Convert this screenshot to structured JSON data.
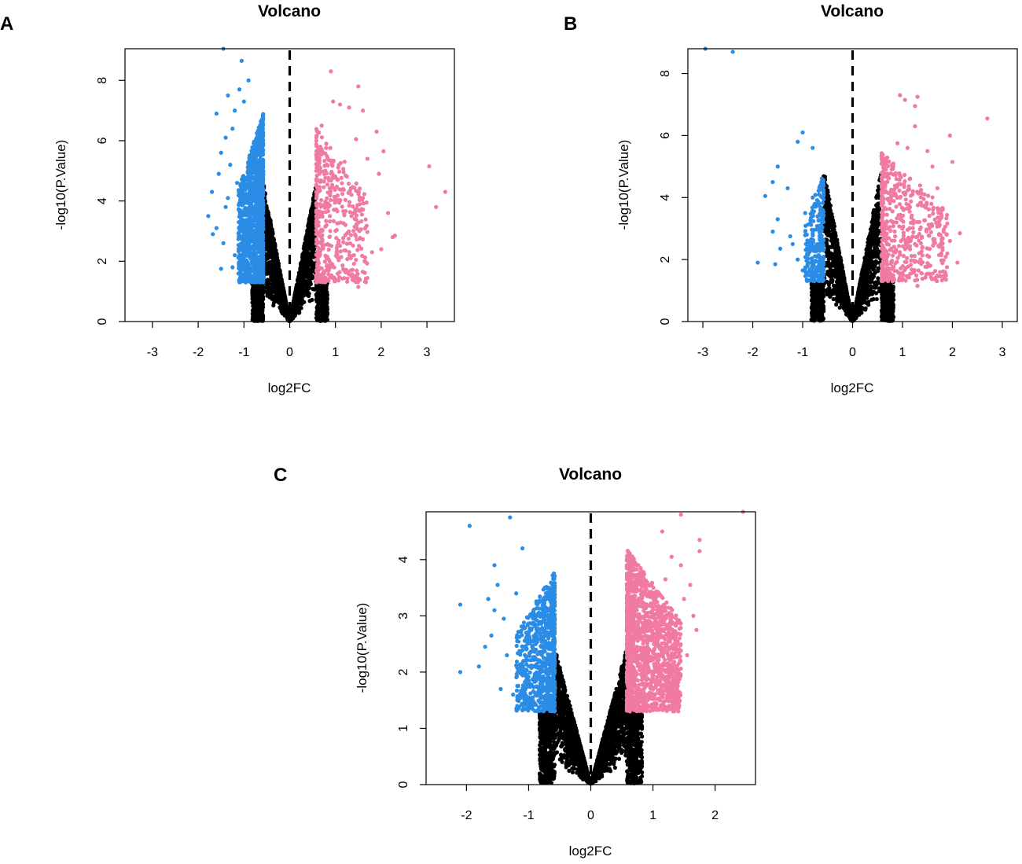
{
  "colors": {
    "down": "#2b8ce6",
    "up": "#f07aa0",
    "ns": "#000000"
  },
  "chart_data": [
    {
      "panel": "A",
      "type": "scatter",
      "title": "Volcano",
      "xlabel": "log2FC",
      "ylabel": "-log10(P.Value)",
      "xlim": [
        -3.6,
        3.6
      ],
      "ylim": [
        0,
        9.05
      ],
      "xticks": [
        -3,
        -2,
        -1,
        0,
        1,
        2,
        3
      ],
      "yticks": [
        0,
        2,
        4,
        6,
        8
      ],
      "fc_cut": 0.58,
      "p_cut": 1.3,
      "ns_slope": 8.0,
      "down_points": [
        [
          -1.45,
          9.1
        ],
        [
          -1.05,
          8.65
        ],
        [
          -1.35,
          7.5
        ],
        [
          -1.6,
          6.9
        ],
        [
          -1.2,
          7.0
        ],
        [
          -1.1,
          7.7
        ],
        [
          -1.4,
          6.1
        ],
        [
          -1.25,
          6.4
        ],
        [
          -1.5,
          5.6
        ],
        [
          -1.3,
          5.2
        ],
        [
          -1.55,
          4.9
        ],
        [
          -1.7,
          4.3
        ],
        [
          -1.78,
          3.5
        ],
        [
          -1.68,
          2.9
        ],
        [
          -1.45,
          2.6
        ],
        [
          -1.2,
          2.2
        ],
        [
          -1.5,
          1.75
        ],
        [
          -1.25,
          1.8
        ],
        [
          -1.6,
          3.1
        ],
        [
          -1.4,
          3.8
        ],
        [
          -1.15,
          4.6
        ],
        [
          -0.9,
          8.0
        ],
        [
          -1.0,
          7.3
        ],
        [
          -1.35,
          4.1
        ],
        [
          -1.1,
          1.6
        ]
      ],
      "down_cloud": {
        "x_min": -1.12,
        "x_max": -0.58,
        "y_min": 1.3,
        "y_max": 6.9,
        "count": 1300,
        "seed": 11
      },
      "up_points": [
        [
          0.9,
          8.3
        ],
        [
          1.5,
          7.8
        ],
        [
          0.95,
          7.3
        ],
        [
          1.3,
          7.1
        ],
        [
          1.1,
          7.2
        ],
        [
          1.6,
          7.0
        ],
        [
          0.7,
          6.5
        ],
        [
          1.9,
          6.3
        ],
        [
          1.45,
          6.05
        ],
        [
          0.8,
          5.9
        ],
        [
          2.05,
          5.65
        ],
        [
          3.05,
          5.15
        ],
        [
          3.4,
          4.3
        ],
        [
          3.2,
          3.8
        ],
        [
          2.3,
          2.85
        ],
        [
          2.25,
          2.8
        ],
        [
          2.15,
          3.6
        ],
        [
          1.8,
          2.3
        ],
        [
          1.6,
          4.1
        ],
        [
          1.2,
          5.3
        ],
        [
          1.7,
          5.4
        ],
        [
          1.0,
          1.4
        ],
        [
          0.75,
          1.6
        ],
        [
          1.5,
          1.15
        ],
        [
          1.95,
          4.9
        ],
        [
          2.0,
          2.4
        ],
        [
          1.35,
          3.5
        ],
        [
          1.05,
          4.7
        ]
      ],
      "up_cloud": {
        "x_min": 0.58,
        "x_max": 1.7,
        "y_min": 1.3,
        "y_max": 6.4,
        "count": 460,
        "seed": 23
      },
      "ns_count": 2600,
      "ns_seed": 37
    },
    {
      "panel": "B",
      "type": "scatter",
      "title": "Volcano",
      "xlabel": "log2FC",
      "ylabel": "-log10(P.Value)",
      "xlim": [
        -3.3,
        3.3
      ],
      "ylim": [
        0,
        8.8
      ],
      "xticks": [
        -3,
        -2,
        -1,
        0,
        1,
        2,
        3
      ],
      "yticks": [
        0,
        2,
        4,
        6,
        8
      ],
      "fc_cut": 0.58,
      "p_cut": 1.3,
      "ns_slope": 8.5,
      "down_points": [
        [
          -2.95,
          8.85
        ],
        [
          -2.4,
          8.7
        ],
        [
          -1.0,
          6.1
        ],
        [
          -1.1,
          5.8
        ],
        [
          -0.8,
          5.6
        ],
        [
          -1.5,
          5.0
        ],
        [
          -1.6,
          4.5
        ],
        [
          -1.75,
          4.05
        ],
        [
          -1.3,
          4.3
        ],
        [
          -1.5,
          3.3
        ],
        [
          -1.6,
          2.9
        ],
        [
          -1.2,
          2.5
        ],
        [
          -1.9,
          1.9
        ],
        [
          -1.55,
          1.85
        ],
        [
          -1.1,
          2.0
        ],
        [
          -0.95,
          3.5
        ],
        [
          -1.25,
          2.75
        ],
        [
          -0.8,
          4.0
        ],
        [
          -1.45,
          2.35
        ],
        [
          -1.0,
          1.65
        ]
      ],
      "down_cloud": {
        "x_min": -0.95,
        "x_max": -0.58,
        "y_min": 1.3,
        "y_max": 4.8,
        "count": 260,
        "seed": 51
      },
      "up_points": [
        [
          2.7,
          6.55
        ],
        [
          0.95,
          7.3
        ],
        [
          1.05,
          7.15
        ],
        [
          1.3,
          7.25
        ],
        [
          1.25,
          6.95
        ],
        [
          1.95,
          6.0
        ],
        [
          1.25,
          6.3
        ],
        [
          0.9,
          5.75
        ],
        [
          1.1,
          5.6
        ],
        [
          1.5,
          5.5
        ],
        [
          1.6,
          5.0
        ],
        [
          2.0,
          5.15
        ],
        [
          2.15,
          2.85
        ],
        [
          2.1,
          1.9
        ],
        [
          1.95,
          2.6
        ],
        [
          1.7,
          4.3
        ],
        [
          1.8,
          3.6
        ],
        [
          1.3,
          1.15
        ],
        [
          0.8,
          1.3
        ],
        [
          1.55,
          3.1
        ],
        [
          1.4,
          2.4
        ]
      ],
      "up_cloud": {
        "x_min": 0.58,
        "x_max": 1.9,
        "y_min": 1.3,
        "y_max": 5.5,
        "count": 560,
        "seed": 67
      },
      "ns_count": 2200,
      "ns_seed": 79
    },
    {
      "panel": "C",
      "type": "scatter",
      "title": "Volcano",
      "xlabel": "log2FC",
      "ylabel": "-log10(P.Value)",
      "xlim": [
        -2.65,
        2.65
      ],
      "ylim": [
        0,
        4.85
      ],
      "xticks": [
        -2,
        -1,
        0,
        1,
        2
      ],
      "yticks": [
        0,
        1,
        2,
        3,
        4
      ],
      "fc_cut": 0.58,
      "p_cut": 1.3,
      "ns_slope": 4.2,
      "down_points": [
        [
          -1.95,
          4.6
        ],
        [
          -1.3,
          4.75
        ],
        [
          -1.1,
          4.2
        ],
        [
          -1.55,
          3.9
        ],
        [
          -1.5,
          3.55
        ],
        [
          -2.1,
          3.2
        ],
        [
          -1.6,
          2.65
        ],
        [
          -1.8,
          2.1
        ],
        [
          -2.1,
          2.0
        ],
        [
          -1.4,
          2.95
        ],
        [
          -1.65,
          3.3
        ],
        [
          -1.35,
          2.3
        ],
        [
          -1.2,
          3.4
        ],
        [
          -1.45,
          1.7
        ],
        [
          -1.25,
          1.6
        ],
        [
          -1.7,
          2.45
        ],
        [
          -1.55,
          3.1
        ]
      ],
      "down_cloud": {
        "x_min": -1.2,
        "x_max": -0.58,
        "y_min": 1.3,
        "y_max": 3.8,
        "count": 820,
        "seed": 83
      },
      "up_points": [
        [
          2.45,
          4.85
        ],
        [
          1.45,
          4.8
        ],
        [
          1.75,
          4.35
        ],
        [
          1.75,
          4.15
        ],
        [
          1.15,
          4.5
        ],
        [
          1.3,
          4.05
        ],
        [
          1.45,
          3.9
        ],
        [
          1.6,
          3.55
        ],
        [
          1.65,
          3.0
        ],
        [
          1.7,
          2.75
        ],
        [
          1.55,
          2.3
        ],
        [
          1.4,
          1.95
        ],
        [
          1.2,
          3.65
        ],
        [
          1.5,
          3.3
        ]
      ],
      "up_cloud": {
        "x_min": 0.58,
        "x_max": 1.45,
        "y_min": 1.3,
        "y_max": 4.2,
        "count": 1550,
        "seed": 97
      },
      "ns_count": 3300,
      "ns_seed": 113
    }
  ]
}
